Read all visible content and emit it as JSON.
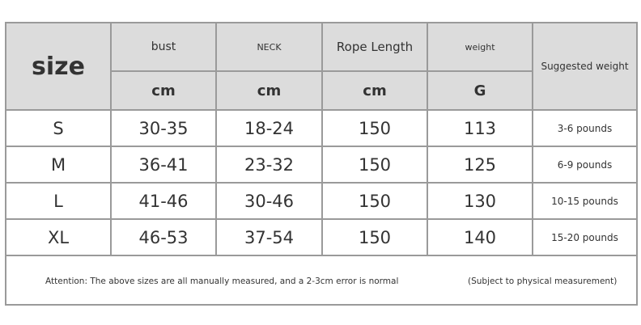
{
  "header": {
    "size": "size",
    "columns": [
      {
        "name": "bust",
        "unit": "cm"
      },
      {
        "name": "NECK",
        "unit": "cm"
      },
      {
        "name": "Rope Length",
        "unit": "cm"
      },
      {
        "name": "weight",
        "unit": "G"
      }
    ],
    "suggested": "Suggested weight"
  },
  "rows": [
    {
      "size": "S",
      "bust": "30-35",
      "neck": "18-24",
      "rope": "150",
      "weight": "113",
      "suggested": "3-6 pounds"
    },
    {
      "size": "M",
      "bust": "36-41",
      "neck": "23-32",
      "rope": "150",
      "weight": "125",
      "suggested": "6-9 pounds"
    },
    {
      "size": "L",
      "bust": "41-46",
      "neck": "30-46",
      "rope": "150",
      "weight": "130",
      "suggested": "10-15 pounds"
    },
    {
      "size": "XL",
      "bust": "46-53",
      "neck": "37-54",
      "rope": "150",
      "weight": "140",
      "suggested": "15-20 pounds"
    }
  ],
  "footer": {
    "note": "Attention: The above sizes are all manually measured, and a 2-3cm error is normal",
    "subject": "(Subject to physical measurement)"
  }
}
